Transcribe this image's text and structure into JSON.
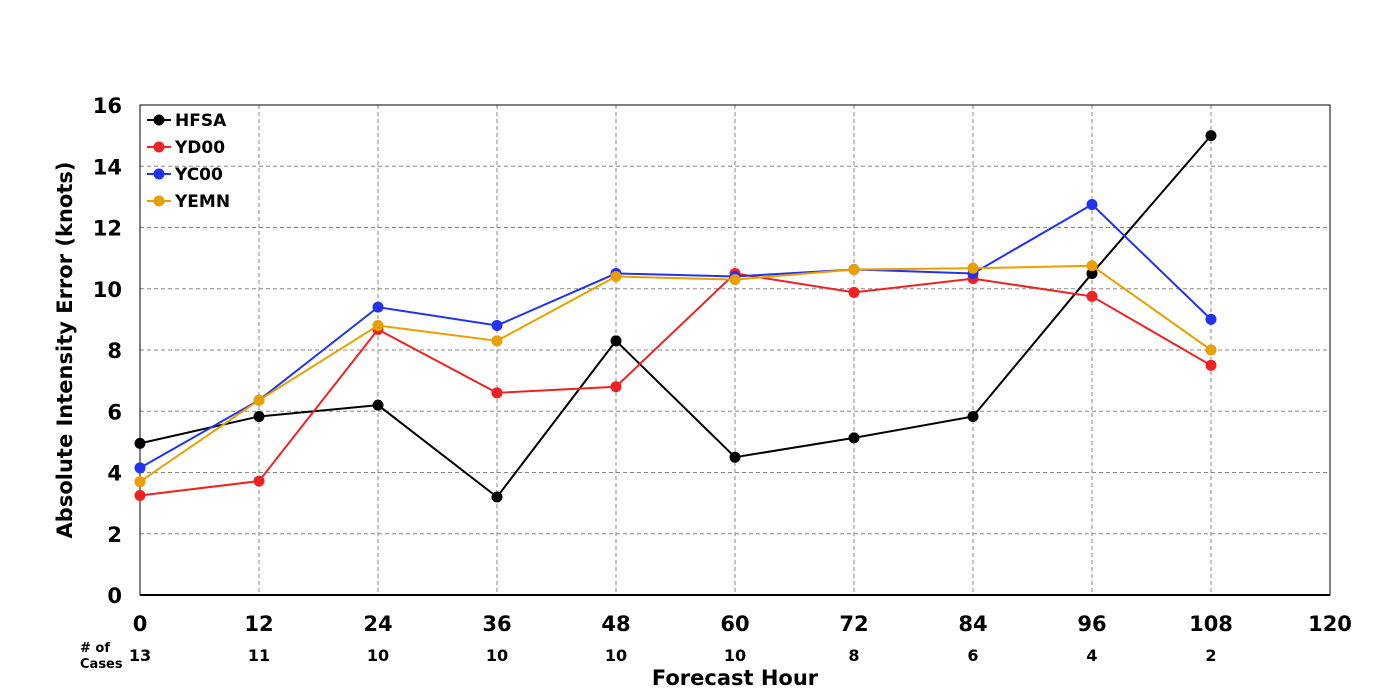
{
  "chart_data": {
    "type": "line",
    "xlabel": "Forecast Hour",
    "ylabel": "Absolute Intensity Error (knots)",
    "xlim": [
      0,
      120
    ],
    "ylim": [
      0,
      16
    ],
    "xticks": [
      0,
      12,
      24,
      36,
      48,
      60,
      72,
      84,
      96,
      108,
      120
    ],
    "yticks": [
      0,
      2,
      4,
      6,
      8,
      10,
      12,
      14,
      16
    ],
    "grid": true,
    "legend_position": "top-left",
    "cases_label_line1": "# of",
    "cases_label_line2": "Cases",
    "x": [
      0,
      12,
      24,
      36,
      48,
      60,
      72,
      84,
      96,
      108
    ],
    "cases": [
      13,
      11,
      10,
      10,
      10,
      10,
      8,
      6,
      4,
      2
    ],
    "series": [
      {
        "name": "HFSA",
        "color": "#000000",
        "values": [
          4.95,
          5.83,
          6.2,
          3.2,
          8.3,
          4.5,
          5.13,
          5.83,
          10.5,
          15.0
        ]
      },
      {
        "name": "YD00",
        "color": "#ee2222",
        "values": [
          3.25,
          3.72,
          8.67,
          6.6,
          6.8,
          10.5,
          9.88,
          10.33,
          9.75,
          7.5
        ]
      },
      {
        "name": "YC00",
        "color": "#2233ee",
        "values": [
          4.15,
          6.36,
          9.4,
          8.8,
          10.5,
          10.4,
          10.63,
          10.5,
          12.75,
          9.0
        ]
      },
      {
        "name": "YEMN",
        "color": "#e8a000",
        "values": [
          3.7,
          6.36,
          8.8,
          8.3,
          10.4,
          10.3,
          10.63,
          10.67,
          10.75,
          8.0
        ]
      }
    ]
  }
}
